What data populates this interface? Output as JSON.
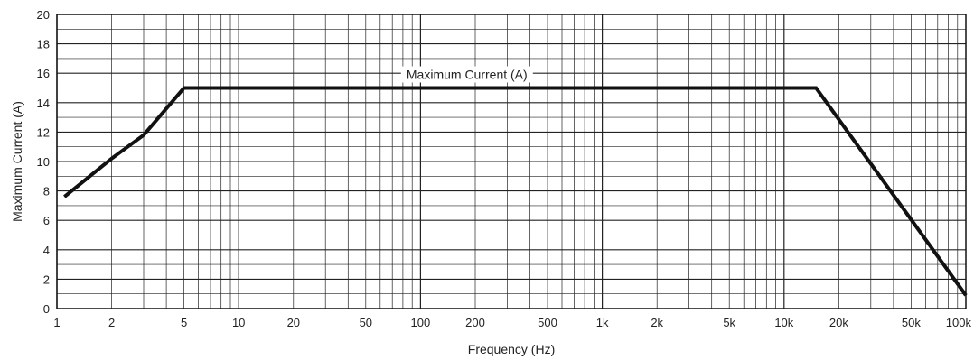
{
  "chart_data": {
    "type": "line",
    "title": "",
    "xlabel": "Frequency (Hz)",
    "ylabel": "Maximum Current (A)",
    "x_scale": "log",
    "xlim": [
      1,
      100000
    ],
    "ylim": [
      0,
      20
    ],
    "grid": true,
    "x_ticks": [
      1,
      2,
      5,
      10,
      20,
      50,
      100,
      200,
      500,
      1000,
      2000,
      5000,
      10000,
      20000,
      50000,
      100000
    ],
    "x_tick_labels": [
      "1",
      "2",
      "5",
      "10",
      "20",
      "50",
      "100",
      "200",
      "500",
      "1k",
      "2k",
      "5k",
      "10k",
      "20k",
      "50k",
      "100k"
    ],
    "y_ticks": [
      0,
      2,
      4,
      6,
      8,
      10,
      12,
      14,
      16,
      18,
      20
    ],
    "y_tick_labels": [
      "0",
      "2",
      "4",
      "6",
      "8",
      "10",
      "12",
      "14",
      "16",
      "18",
      "20"
    ],
    "series": [
      {
        "name": "Maximum Current (A)",
        "x": [
          1.1,
          2,
          3,
          5,
          15000,
          100000
        ],
        "y": [
          7.6,
          10.2,
          11.8,
          15,
          15,
          0.9
        ]
      }
    ]
  }
}
